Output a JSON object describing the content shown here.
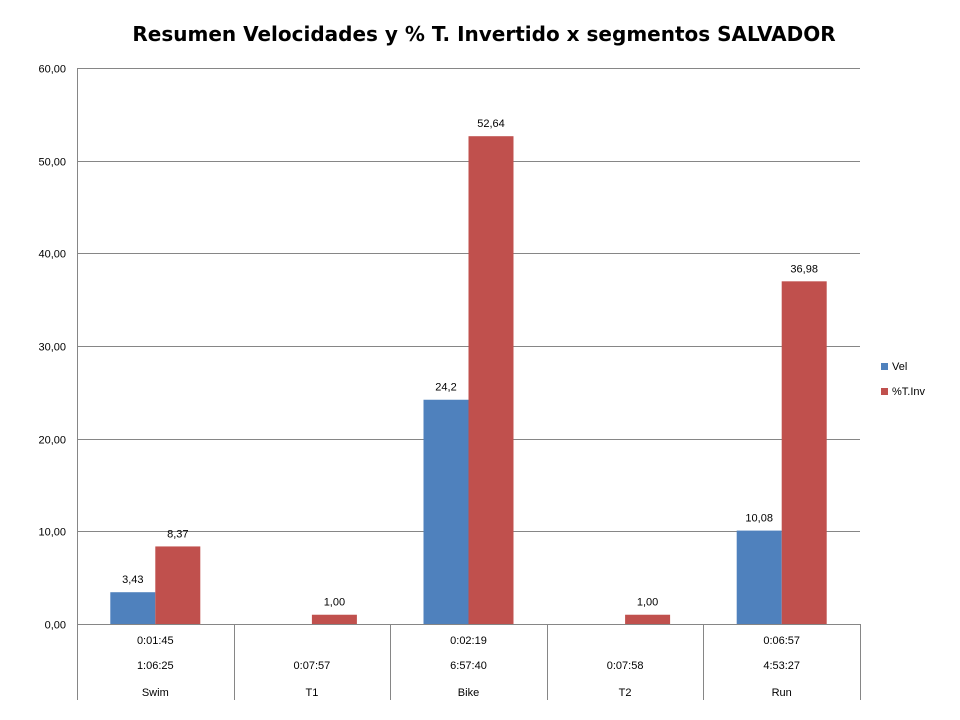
{
  "chart_data": {
    "type": "bar",
    "title": "Resumen Velocidades y % T. Invertido x segmentos SALVADOR",
    "xlabel": "",
    "ylabel": "",
    "ylim": [
      0,
      60
    ],
    "yticks": [
      "0,00",
      "10,00",
      "20,00",
      "30,00",
      "40,00",
      "50,00",
      "60,00"
    ],
    "grid": true,
    "legend_position": "right",
    "categories": [
      {
        "row1": "0:01:45",
        "row2": "1:06:25",
        "row3": "Swim"
      },
      {
        "row1": "",
        "row2": "0:07:57",
        "row3": "T1"
      },
      {
        "row1": "0:02:19",
        "row2": "6:57:40",
        "row3": "Bike"
      },
      {
        "row1": "",
        "row2": "0:07:58",
        "row3": "T2"
      },
      {
        "row1": "0:06:57",
        "row2": "4:53:27",
        "row3": "Run"
      }
    ],
    "series": [
      {
        "name": "Vel",
        "color": "#4F81BD",
        "values": [
          3.43,
          null,
          24.2,
          null,
          10.08
        ],
        "labels": [
          "3,43",
          "",
          "24,2",
          "",
          "10,08"
        ]
      },
      {
        "name": "%T.Inv",
        "color": "#C0504D",
        "values": [
          8.37,
          1.0,
          52.64,
          1.0,
          36.98
        ],
        "labels": [
          "8,37",
          "1,00",
          "52,64",
          "1,00",
          "36,98"
        ]
      }
    ]
  }
}
